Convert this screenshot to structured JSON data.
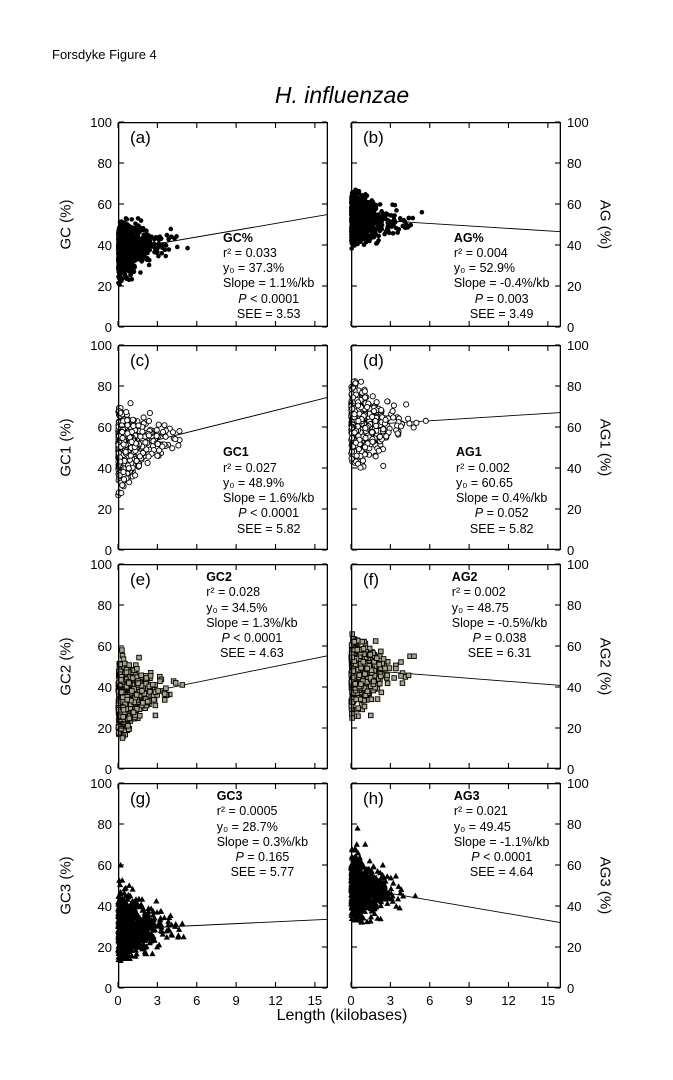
{
  "page_label": "Forsdyke Figure 4",
  "chart_data": {
    "type": "scatter",
    "title": "H. influenzae",
    "xlabel": "Length (kilobases)",
    "xlim": [
      0,
      16
    ],
    "ylim": [
      0,
      100
    ],
    "x_ticks": [
      0,
      3,
      6,
      9,
      12,
      15
    ],
    "y_ticks": [
      0,
      20,
      40,
      60,
      80,
      100
    ],
    "grid": false,
    "colors": {
      "axis": "#000000",
      "text": "#000000",
      "square_fill": "#a9a68a"
    },
    "stat_labels": {
      "r2": "r²",
      "y0": "y₀",
      "slope": "Slope",
      "p": "P",
      "see": "SEE"
    },
    "panels": [
      {
        "id": "a",
        "letter": "(a)",
        "column": "left",
        "row": 0,
        "axis_label": "GC (%)",
        "series": "GC%",
        "marker": "circle",
        "stats": {
          "r2": "0.033",
          "y0": "37.3%",
          "slope": "1.1%/kb",
          "p": "< 0.0001",
          "see": "3.53"
        },
        "regression": {
          "intercept": 37.3,
          "slope_per_kb": 1.1
        },
        "cluster": {
          "n": 900,
          "x_mean": 0.85,
          "x_max": 5.5,
          "sd": 6.2,
          "y_min": 20,
          "y_max": 53
        },
        "outliers": [
          [
            5.3,
            38.5
          ]
        ],
        "ann": {
          "left": 0.5,
          "top": 0.53
        }
      },
      {
        "id": "b",
        "letter": "(b)",
        "column": "right",
        "row": 0,
        "axis_label": "AG (%)",
        "series": "AG%",
        "marker": "circle",
        "stats": {
          "r2": "0.004",
          "y0": "52.9%",
          "slope": "-0.4%/kb",
          "p": "= 0.003",
          "see": "3.49"
        },
        "regression": {
          "intercept": 52.9,
          "slope_per_kb": -0.4
        },
        "cluster": {
          "n": 900,
          "x_mean": 0.85,
          "x_max": 5.0,
          "sd": 6.0,
          "y_min": 37,
          "y_max": 69
        },
        "outliers": [
          [
            5.4,
            56
          ]
        ],
        "ann": {
          "left": 0.49,
          "top": 0.53
        }
      },
      {
        "id": "c",
        "letter": "(c)",
        "column": "left",
        "row": 1,
        "axis_label": "GC1 (%)",
        "series": "GC1",
        "marker": "circle-open",
        "stats": {
          "r2": "0.027",
          "y0": "48.9%",
          "slope": "1.6%/kb",
          "p": "< 0.0001",
          "see": "5.82"
        },
        "regression": {
          "intercept": 48.9,
          "slope_per_kb": 1.6
        },
        "cluster": {
          "n": 620,
          "x_mean": 0.9,
          "x_max": 5.0,
          "sd": 8.8,
          "y_min": 26,
          "y_max": 72
        },
        "outliers": [
          [
            4.6,
            51
          ],
          [
            3.0,
            46
          ]
        ],
        "ann": {
          "left": 0.5,
          "top": 0.49
        }
      },
      {
        "id": "d",
        "letter": "(d)",
        "column": "right",
        "row": 1,
        "axis_label": "AG1 (%)",
        "series": "AG1",
        "marker": "circle-open",
        "stats": {
          "r2": "0.002",
          "y0": "60.65",
          "slope": "0.4%/kb",
          "p": "= 0.052",
          "see": "5.82"
        },
        "regression": {
          "intercept": 60.65,
          "slope_per_kb": 0.4
        },
        "cluster": {
          "n": 620,
          "x_mean": 0.9,
          "x_max": 5.2,
          "sd": 9.5,
          "y_min": 35,
          "y_max": 83
        },
        "outliers": [
          [
            4.2,
            71
          ],
          [
            5.7,
            63
          ]
        ],
        "ann": {
          "left": 0.5,
          "top": 0.49
        }
      },
      {
        "id": "e",
        "letter": "(e)",
        "column": "left",
        "row": 2,
        "axis_label": "GC2 (%)",
        "series": "GC2",
        "marker": "square",
        "stats": {
          "r2": "0.028",
          "y0": "34.5%",
          "slope": "1.3%/kb",
          "p": "< 0.0001",
          "see": "4.63"
        },
        "regression": {
          "intercept": 34.5,
          "slope_per_kb": 1.3
        },
        "cluster": {
          "n": 520,
          "x_mean": 0.9,
          "x_max": 4.6,
          "sd": 8.2,
          "y_min": 13,
          "y_max": 56
        },
        "outliers": [
          [
            0.3,
            58
          ],
          [
            4.9,
            41
          ],
          [
            4.4,
            42
          ]
        ],
        "ann": {
          "left": 0.42,
          "top": 0.03
        }
      },
      {
        "id": "f",
        "letter": "(f)",
        "column": "right",
        "row": 2,
        "axis_label": "AG2 (%)",
        "series": "AG2",
        "marker": "square",
        "stats": {
          "r2": "0.002",
          "y0": "48.75",
          "slope": "-0.5%/kb",
          "p": "= 0.038",
          "see": "6.31"
        },
        "regression": {
          "intercept": 48.75,
          "slope_per_kb": -0.5
        },
        "cluster": {
          "n": 520,
          "x_mean": 0.9,
          "x_max": 4.4,
          "sd": 8.6,
          "y_min": 23,
          "y_max": 66
        },
        "outliers": [
          [
            4.5,
            55
          ],
          [
            4.8,
            55
          ]
        ],
        "ann": {
          "left": 0.48,
          "top": 0.03
        }
      },
      {
        "id": "g",
        "letter": "(g)",
        "column": "left",
        "row": 3,
        "axis_label": "GC3 (%)",
        "series": "GC3",
        "marker": "triangle",
        "stats": {
          "r2": "0.0005",
          "y0": "28.7%",
          "slope": "0.3%/kb",
          "p": "= 0.165",
          "see": "5.77"
        },
        "regression": {
          "intercept": 28.7,
          "slope_per_kb": 0.3
        },
        "cluster": {
          "n": 850,
          "x_mean": 0.9,
          "x_max": 5.1,
          "sd": 8.8,
          "y_min": 13,
          "y_max": 59
        },
        "outliers": [
          [
            0.2,
            60
          ],
          [
            5.0,
            25
          ]
        ],
        "ann": {
          "left": 0.47,
          "top": 0.03
        }
      },
      {
        "id": "h",
        "letter": "(h)",
        "column": "right",
        "row": 3,
        "axis_label": "AG3 (%)",
        "series": "AG3",
        "marker": "triangle",
        "stats": {
          "r2": "0.021",
          "y0": "49.45",
          "slope": "-1.1%/kb",
          "p": "< 0.0001",
          "see": "4.64"
        },
        "regression": {
          "intercept": 49.45,
          "slope_per_kb": -1.1
        },
        "cluster": {
          "n": 850,
          "x_mean": 0.85,
          "x_max": 5.0,
          "sd": 7.2,
          "y_min": 32,
          "y_max": 72
        },
        "outliers": [
          [
            0.5,
            78
          ],
          [
            4.9,
            45
          ]
        ],
        "ann": {
          "left": 0.49,
          "top": 0.03
        }
      }
    ]
  }
}
